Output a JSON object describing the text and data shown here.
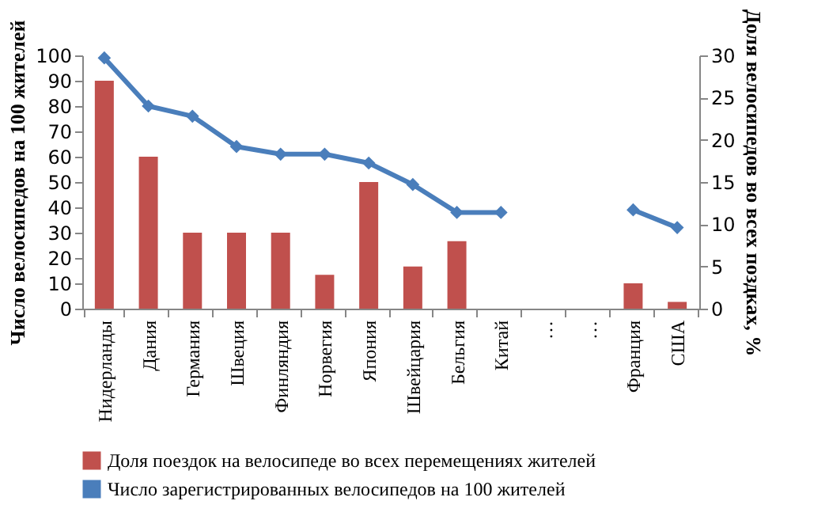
{
  "chart_data": {
    "type": "bar",
    "categories": [
      "Нидерланды",
      "Дания",
      "Германия",
      "Швеция",
      "Финляндия",
      "Норвегия",
      "Япония",
      "Швейцария",
      "Бельгия",
      "Китай",
      "…",
      "…",
      "Франция",
      "США"
    ],
    "ylabel": "Число велосипедов на 100 жителей",
    "y2label": "Доля велосипедов во всех поздках, %",
    "ylim": [
      0,
      100
    ],
    "yticks": [
      0,
      10,
      20,
      30,
      40,
      50,
      60,
      70,
      80,
      90,
      100
    ],
    "y2lim": [
      0,
      30
    ],
    "y2ticks": [
      0,
      5,
      10,
      15,
      20,
      25,
      30
    ],
    "series": [
      {
        "name": "Доля поездок на велосипеде во всех перемещениях жителей",
        "axis": "y2",
        "color": "#c0504d",
        "values": [
          27,
          18,
          9,
          9,
          9,
          4,
          15,
          5,
          8,
          null,
          null,
          null,
          3,
          0.8
        ]
      },
      {
        "name": "Число зарегистрированных велосипедов на 100 жителей",
        "type": "line",
        "color": "#4a7ebb",
        "marker": "diamond",
        "values": [
          99,
          80,
          76,
          64,
          61,
          61,
          57.5,
          49,
          38,
          38,
          null,
          null,
          39,
          32
        ]
      }
    ],
    "legend": "bottom",
    "grid": false
  }
}
